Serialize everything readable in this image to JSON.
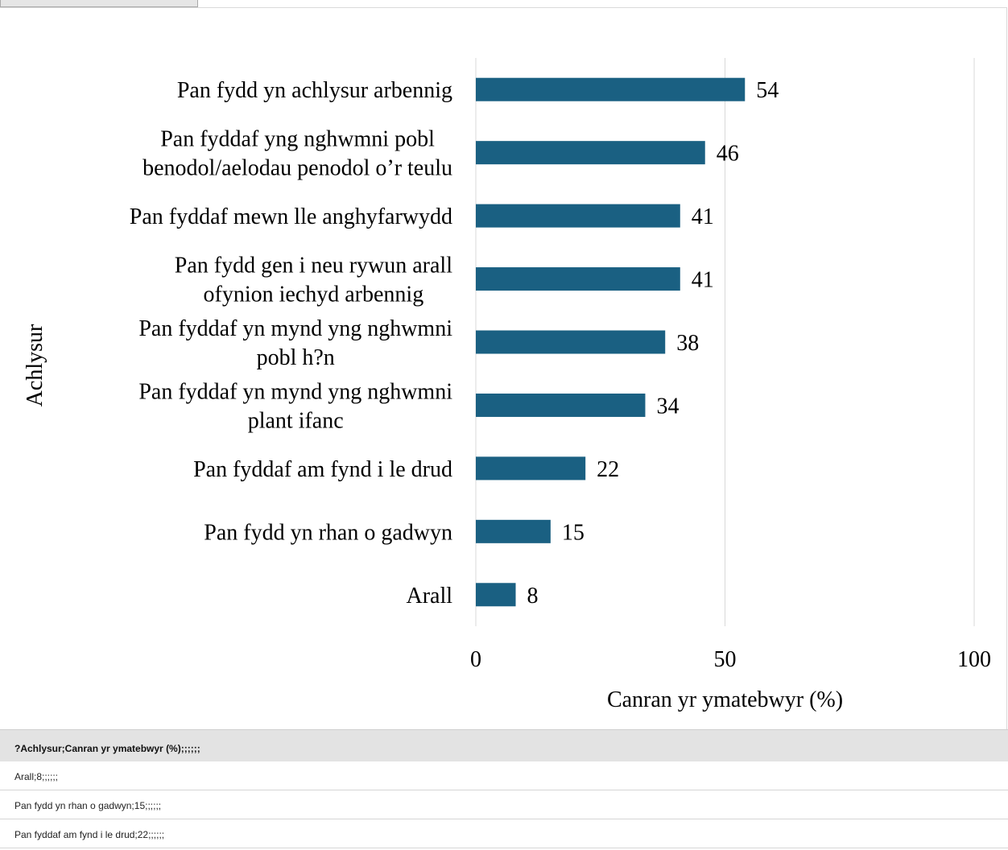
{
  "chart_data": {
    "type": "bar",
    "orientation": "horizontal",
    "categories": [
      "Pan fydd yn achlysur arbennig",
      "Pan fyddaf yng nghwmni pobl benodol/aelodau penodol o’r teulu",
      "Pan fyddaf mewn lle anghyfarwydd",
      "Pan fydd gen i neu rywun arall ofynion iechyd arbennig",
      "Pan fyddaf yn mynd yng nghwmni pobl h?n",
      "Pan fyddaf yn mynd yng nghwmni plant ifanc",
      "Pan fyddaf am fynd i le drud",
      "Pan fydd yn rhan o gadwyn",
      "Arall"
    ],
    "category_lines": [
      [
        "Pan fydd yn achlysur arbennig"
      ],
      [
        "Pan fyddaf yng nghwmni pobl",
        "benodol/aelodau penodol o’r teulu"
      ],
      [
        "Pan fyddaf mewn lle anghyfarwydd"
      ],
      [
        "Pan fydd gen i neu rywun arall",
        "ofynion iechyd arbennig"
      ],
      [
        "Pan fyddaf yn mynd yng nghwmni",
        "pobl h?n"
      ],
      [
        "Pan fyddaf yn mynd yng nghwmni",
        "plant ifanc"
      ],
      [
        "Pan fyddaf am fynd i le drud"
      ],
      [
        "Pan fydd yn rhan o gadwyn"
      ],
      [
        "Arall"
      ]
    ],
    "values": [
      54,
      46,
      41,
      41,
      38,
      34,
      22,
      15,
      8
    ],
    "xlabel": "Canran yr ymatebwyr (%)",
    "ylabel": "Achlysur",
    "xlim": [
      0,
      100
    ],
    "xticks": [
      0,
      50,
      100
    ],
    "grid": true,
    "bar_color": "#1a6082"
  },
  "table": {
    "header": "?Achlysur;Canran yr ymatebwyr (%);;;;;;",
    "rows": [
      "Arall;8;;;;;;",
      "Pan fydd yn rhan o gadwyn;15;;;;;;",
      "Pan fyddaf am fynd i le drud;22;;;;;;"
    ]
  }
}
